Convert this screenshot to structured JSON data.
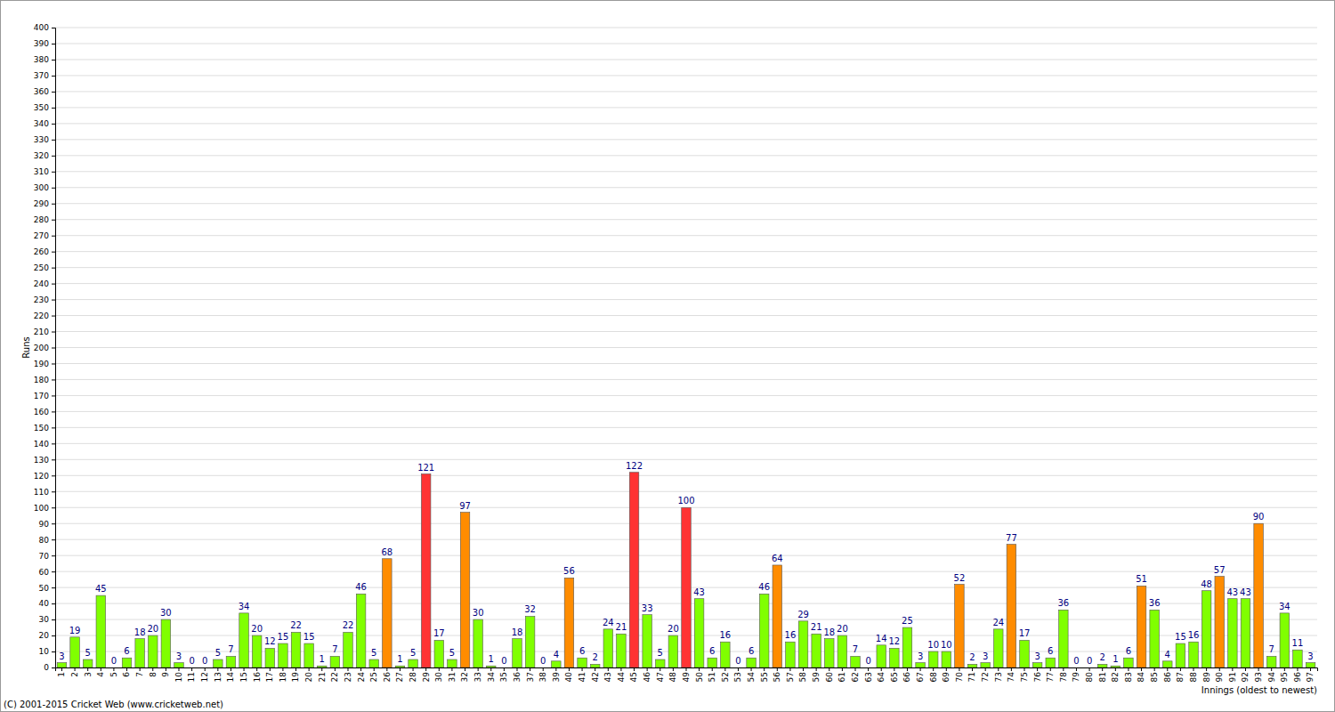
{
  "chart_data": {
    "type": "bar",
    "x_label": "Innings (oldest to newest)",
    "y_label": "Runs",
    "annotations": [
      "(C) 2001-2015 Cricket Web (www.cricketweb.net)"
    ],
    "categories": [
      "1",
      "2",
      "3",
      "4",
      "5",
      "6",
      "7",
      "8",
      "9",
      "10",
      "11",
      "12",
      "13",
      "14",
      "15",
      "16",
      "17",
      "18",
      "19",
      "20",
      "21",
      "22",
      "23",
      "24",
      "25",
      "26",
      "27",
      "28",
      "29",
      "30",
      "31",
      "32",
      "33",
      "34",
      "35",
      "36",
      "37",
      "38",
      "39",
      "40",
      "41",
      "42",
      "43",
      "44",
      "45",
      "46",
      "47",
      "48",
      "49",
      "50",
      "51",
      "52",
      "53",
      "54",
      "55",
      "56",
      "57",
      "58",
      "59",
      "60",
      "61",
      "62",
      "63",
      "64",
      "65",
      "66",
      "67",
      "68",
      "69",
      "70",
      "71",
      "72",
      "73",
      "74",
      "75",
      "76",
      "77",
      "78",
      "79",
      "80",
      "81",
      "82",
      "83",
      "84",
      "85",
      "86",
      "87",
      "88",
      "89",
      "90",
      "91",
      "92",
      "93",
      "94",
      "95",
      "96",
      "97"
    ],
    "values": [
      3,
      19,
      5,
      45,
      0,
      6,
      18,
      20,
      30,
      3,
      0,
      0,
      5,
      7,
      34,
      20,
      12,
      15,
      22,
      15,
      1,
      7,
      22,
      46,
      5,
      68,
      1,
      5,
      121,
      17,
      5,
      97,
      30,
      1,
      0,
      18,
      32,
      0,
      4,
      56,
      6,
      2,
      24,
      21,
      122,
      33,
      5,
      20,
      100,
      43,
      6,
      16,
      0,
      6,
      46,
      64,
      16,
      29,
      21,
      18,
      20,
      7,
      0,
      14,
      12,
      25,
      3,
      10,
      10,
      52,
      2,
      3,
      24,
      77,
      17,
      3,
      6,
      36,
      0,
      0,
      2,
      1,
      6,
      51,
      36,
      4,
      15,
      16,
      48,
      57,
      43,
      43,
      90,
      7,
      34,
      11,
      3
    ],
    "colors": [
      "#80ff00",
      "#80ff00",
      "#80ff00",
      "#80ff00",
      "#80ff00",
      "#80ff00",
      "#80ff00",
      "#80ff00",
      "#80ff00",
      "#80ff00",
      "#80ff00",
      "#80ff00",
      "#80ff00",
      "#80ff00",
      "#80ff00",
      "#80ff00",
      "#80ff00",
      "#80ff00",
      "#80ff00",
      "#80ff00",
      "#80ff00",
      "#80ff00",
      "#80ff00",
      "#80ff00",
      "#80ff00",
      "#ff8c00",
      "#80ff00",
      "#80ff00",
      "#ff3333",
      "#80ff00",
      "#80ff00",
      "#ff8c00",
      "#80ff00",
      "#80ff00",
      "#80ff00",
      "#80ff00",
      "#80ff00",
      "#80ff00",
      "#80ff00",
      "#ff8c00",
      "#80ff00",
      "#80ff00",
      "#80ff00",
      "#80ff00",
      "#ff3333",
      "#80ff00",
      "#80ff00",
      "#80ff00",
      "#ff3333",
      "#80ff00",
      "#80ff00",
      "#80ff00",
      "#80ff00",
      "#80ff00",
      "#80ff00",
      "#ff8c00",
      "#80ff00",
      "#80ff00",
      "#80ff00",
      "#80ff00",
      "#80ff00",
      "#80ff00",
      "#80ff00",
      "#80ff00",
      "#80ff00",
      "#80ff00",
      "#80ff00",
      "#80ff00",
      "#80ff00",
      "#ff8c00",
      "#80ff00",
      "#80ff00",
      "#80ff00",
      "#ff8c00",
      "#80ff00",
      "#80ff00",
      "#80ff00",
      "#80ff00",
      "#80ff00",
      "#80ff00",
      "#80ff00",
      "#80ff00",
      "#80ff00",
      "#ff8c00",
      "#80ff00",
      "#80ff00",
      "#80ff00",
      "#80ff00",
      "#80ff00",
      "#ff8c00",
      "#80ff00",
      "#80ff00",
      "#ff8c00",
      "#80ff00",
      "#80ff00",
      "#80ff00",
      "#80ff00"
    ],
    "ylim": [
      0,
      400
    ],
    "yticks": [
      0,
      10,
      20,
      30,
      40,
      50,
      60,
      70,
      80,
      90,
      100,
      110,
      120,
      130,
      140,
      150,
      160,
      170,
      180,
      190,
      200,
      210,
      220,
      230,
      240,
      250,
      260,
      270,
      280,
      290,
      300,
      310,
      320,
      330,
      340,
      350,
      360,
      370,
      380,
      390,
      400
    ],
    "grid": true,
    "data_labels": true
  }
}
